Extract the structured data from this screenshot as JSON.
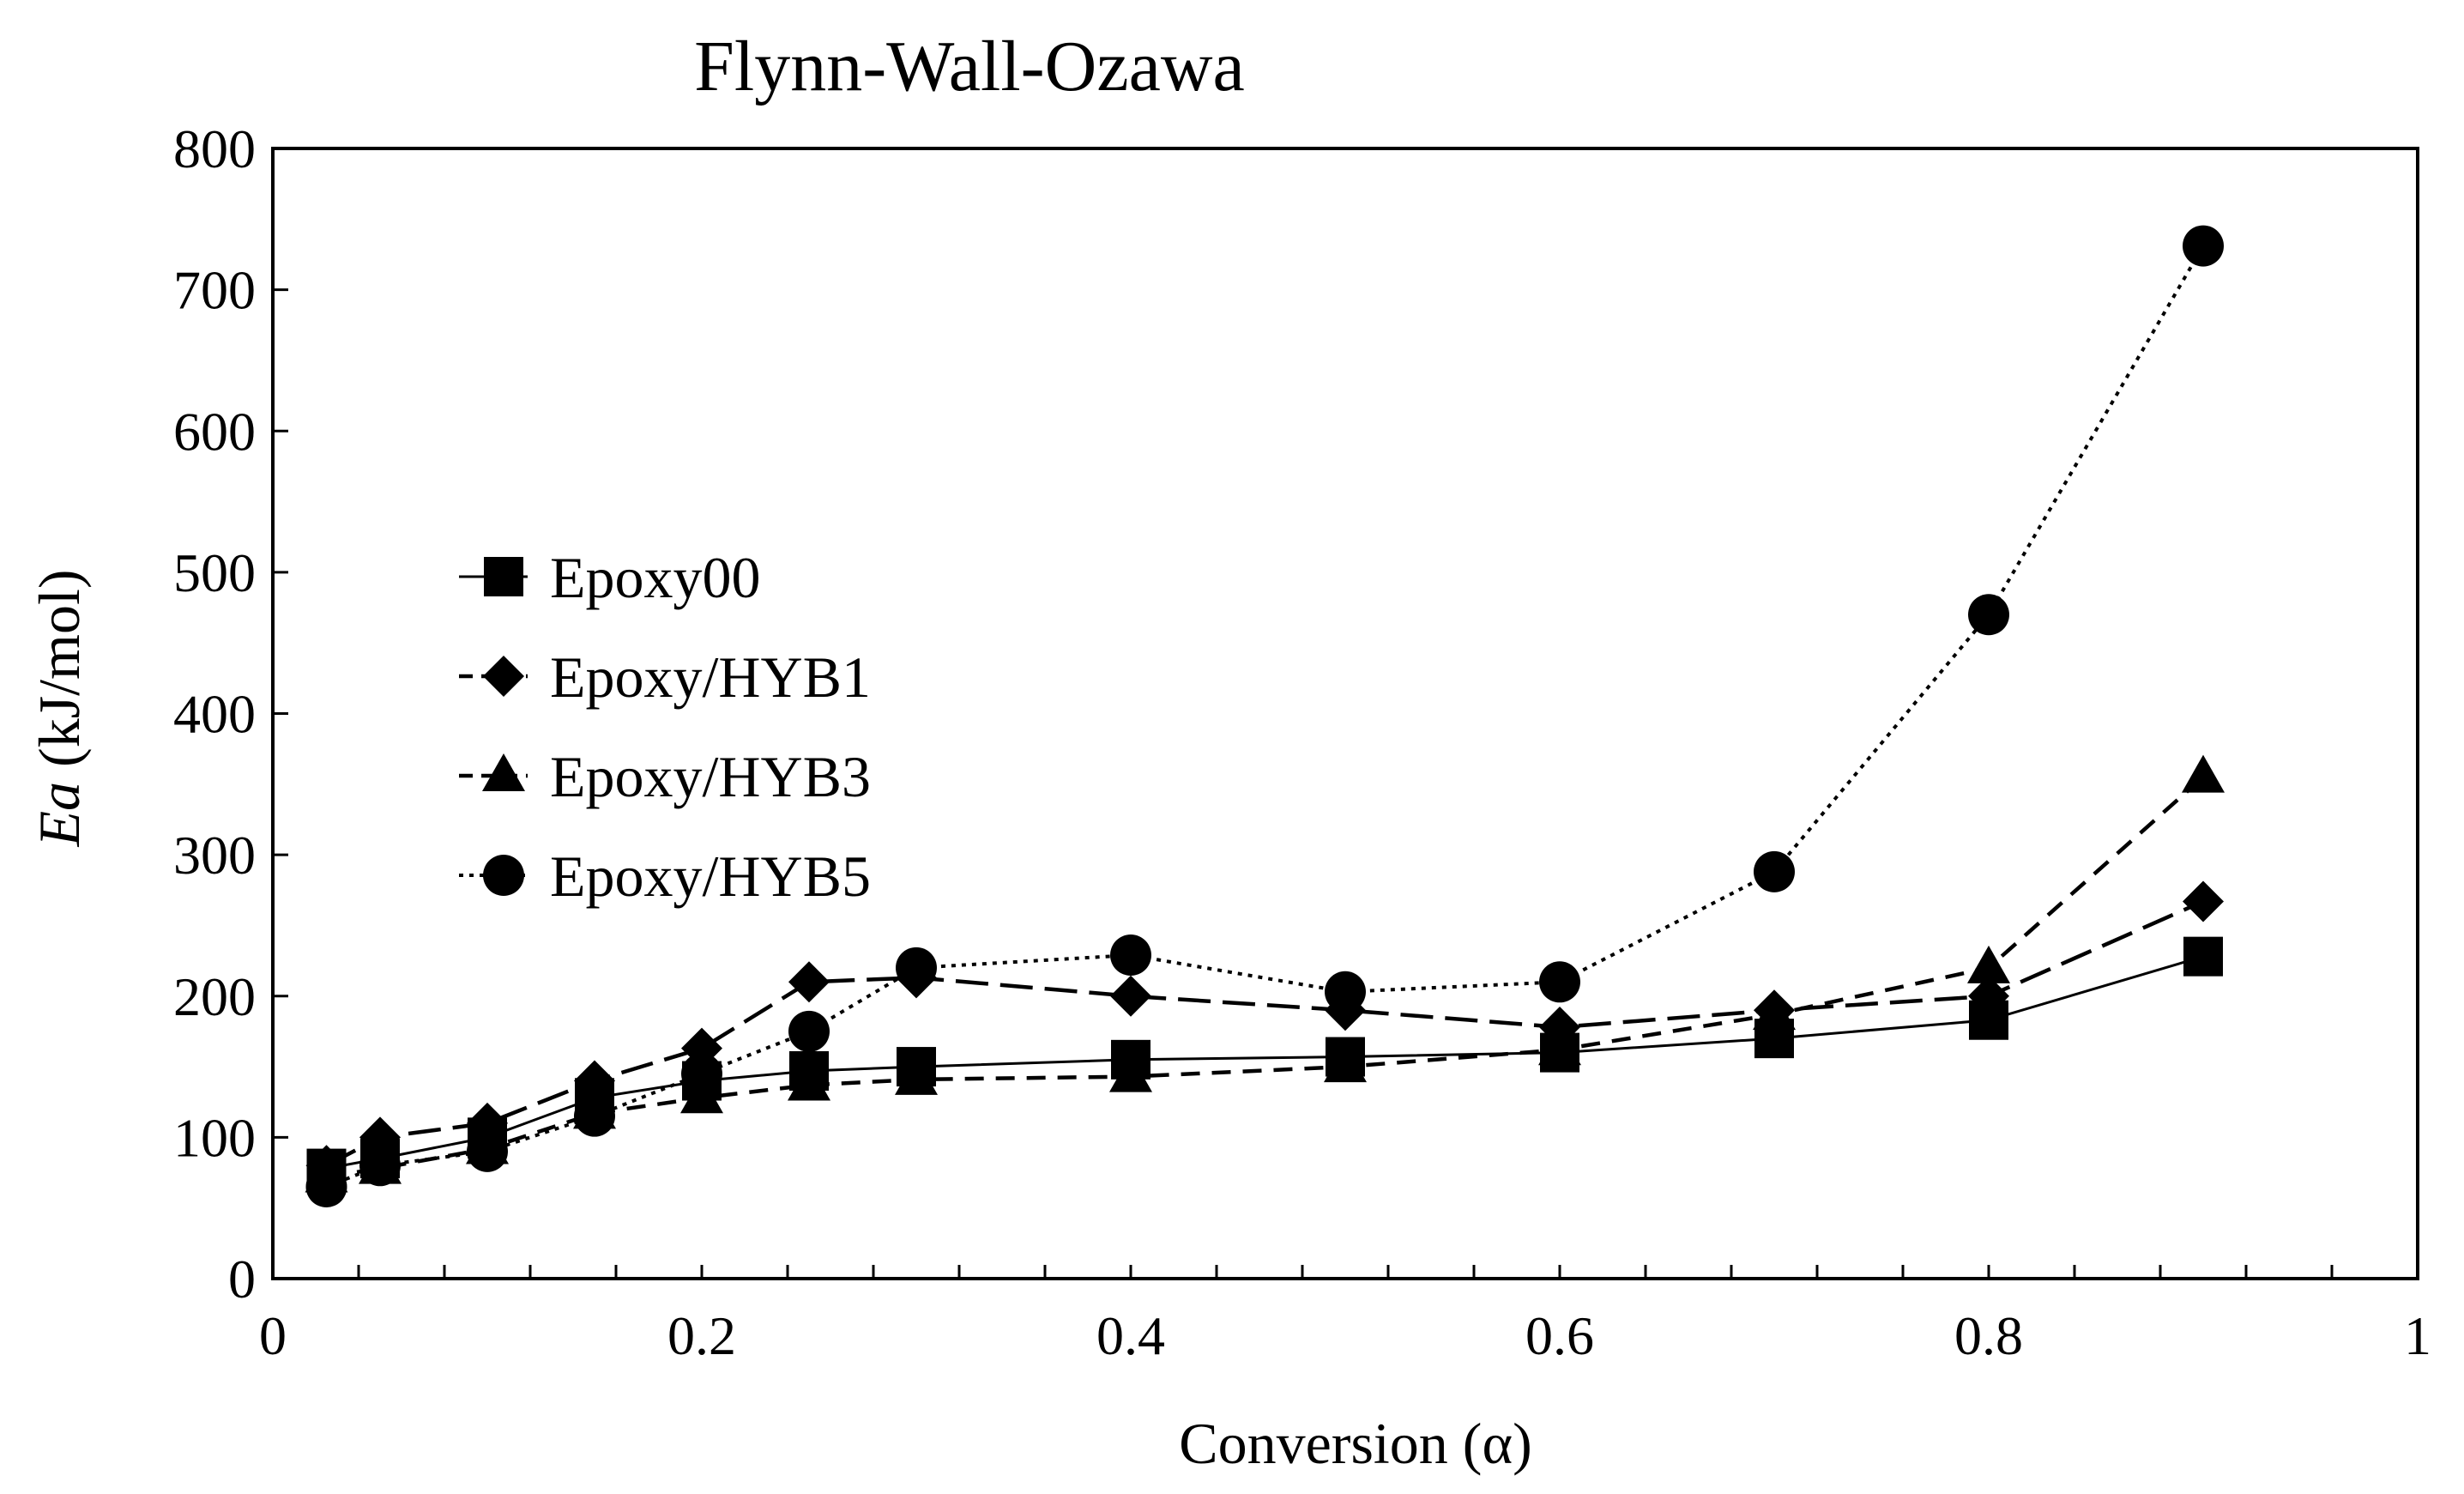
{
  "chart_data": {
    "type": "line",
    "title": "Flynn-Wall-Ozawa",
    "xlabel": "Conversion (α)",
    "ylabel_italic": "Ea",
    "ylabel_rest": " (kJ/mol)",
    "xlim": [
      0,
      1
    ],
    "ylim": [
      0,
      800
    ],
    "x_ticks": [
      0,
      0.2,
      0.4,
      0.6,
      0.8,
      1
    ],
    "x_tick_labels": [
      "0",
      "0.2",
      "0.4",
      "0.6",
      "0.8",
      "1"
    ],
    "x_minor_step": 0.04,
    "y_ticks": [
      0,
      100,
      200,
      300,
      400,
      500,
      600,
      700,
      800
    ],
    "y_tick_labels": [
      "0",
      "100",
      "200",
      "300",
      "400",
      "500",
      "600",
      "700",
      "800"
    ],
    "grid": false,
    "legend_position": "middle-left",
    "x": [
      0.025,
      0.05,
      0.1,
      0.15,
      0.2,
      0.25,
      0.3,
      0.4,
      0.5,
      0.6,
      0.7,
      0.8,
      0.9
    ],
    "series": [
      {
        "name": "Epoxy00",
        "marker": "square",
        "line": "solid",
        "values": [
          78,
          85,
          100,
          128,
          140,
          147,
          150,
          155,
          157,
          160,
          170,
          183,
          228
        ]
      },
      {
        "name": "Epoxy/HYB1",
        "marker": "diamond",
        "line": "long-dash",
        "values": [
          80,
          100,
          110,
          140,
          163,
          210,
          213,
          200,
          190,
          178,
          190,
          200,
          267
        ]
      },
      {
        "name": "Epoxy/HYB3",
        "marker": "triangle",
        "line": "dash",
        "values": [
          72,
          78,
          92,
          117,
          128,
          137,
          141,
          143,
          150,
          162,
          187,
          220,
          355
        ]
      },
      {
        "name": "Epoxy/HYB5",
        "marker": "circle",
        "line": "dotted",
        "values": [
          65,
          80,
          90,
          115,
          145,
          175,
          220,
          229,
          203,
          210,
          288,
          470,
          731
        ]
      }
    ]
  }
}
